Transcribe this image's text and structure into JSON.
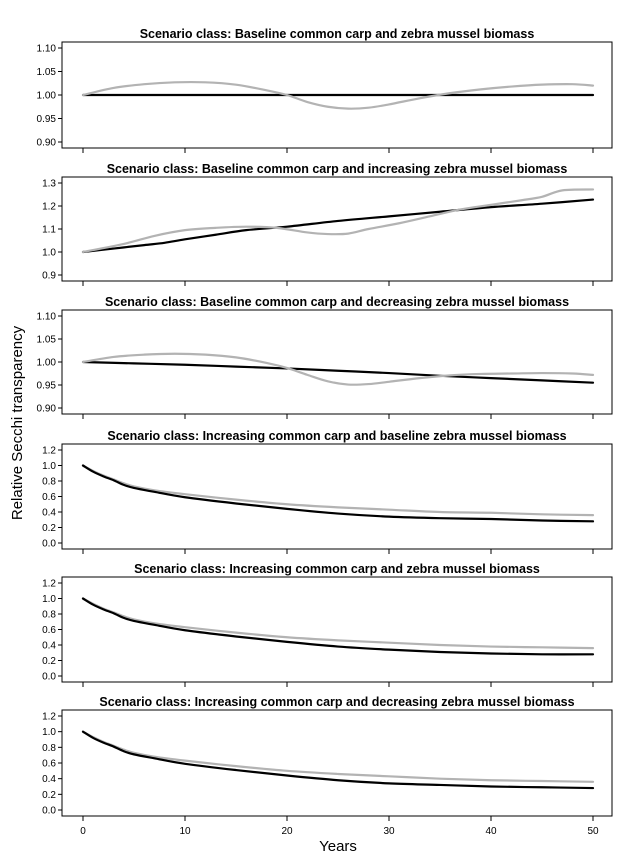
{
  "figure": {
    "ylabel": "Relative Secchi transparency",
    "xlabel": "Years"
  },
  "chart_data": [
    {
      "type": "line",
      "title": "Scenario class: Baseline common carp and zebra mussel biomass",
      "xlabel": "Years",
      "ylabel": "Relative Secchi transparency",
      "xlim": [
        0,
        50
      ],
      "ylim": [
        0.9,
        1.1
      ],
      "xticks": [
        0,
        10,
        20,
        30,
        40,
        50
      ],
      "yticks": [
        "0.90",
        "0.95",
        "1.00",
        "1.05",
        "1.10"
      ],
      "grid": false,
      "series": [
        {
          "color": "#000000",
          "x": [
            0,
            10,
            20,
            30,
            40,
            50
          ],
          "y": [
            1.0,
            1.0,
            1.0,
            1.0,
            1.0,
            1.0
          ]
        },
        {
          "color": "#b3b3b3",
          "x": [
            0,
            3,
            6,
            9,
            12,
            15,
            18,
            20,
            22,
            24,
            26,
            28,
            30,
            33,
            36,
            39,
            42,
            45,
            48,
            50
          ],
          "y": [
            1.0,
            1.015,
            1.023,
            1.027,
            1.027,
            1.022,
            1.01,
            1.0,
            0.985,
            0.975,
            0.971,
            0.973,
            0.98,
            0.993,
            1.004,
            1.012,
            1.018,
            1.022,
            1.023,
            1.02
          ]
        }
      ]
    },
    {
      "type": "line",
      "title": "Scenario class: Baseline common carp and increasing zebra mussel biomass",
      "xlabel": "Years",
      "ylabel": "Relative Secchi transparency",
      "xlim": [
        0,
        50
      ],
      "ylim": [
        0.9,
        1.3
      ],
      "xticks": [
        0,
        10,
        20,
        30,
        40,
        50
      ],
      "yticks": [
        "0.9",
        "1.0",
        "1.1",
        "1.2",
        "1.3"
      ],
      "grid": false,
      "series": [
        {
          "color": "#000000",
          "x": [
            0,
            3,
            6,
            8,
            10,
            13,
            16,
            20,
            25,
            30,
            35,
            40,
            45,
            50
          ],
          "y": [
            1.0,
            1.015,
            1.03,
            1.04,
            1.055,
            1.075,
            1.095,
            1.11,
            1.135,
            1.155,
            1.175,
            1.195,
            1.21,
            1.228
          ]
        },
        {
          "color": "#b3b3b3",
          "x": [
            0,
            4,
            7,
            10,
            13,
            16,
            19,
            22,
            24,
            26,
            28,
            31,
            34,
            37,
            40,
            43,
            45,
            47,
            50
          ],
          "y": [
            1.0,
            1.035,
            1.07,
            1.095,
            1.105,
            1.11,
            1.105,
            1.085,
            1.078,
            1.08,
            1.1,
            1.125,
            1.155,
            1.185,
            1.205,
            1.225,
            1.24,
            1.268,
            1.272
          ]
        }
      ]
    },
    {
      "type": "line",
      "title": "Scenario class: Baseline common carp and decreasing zebra mussel biomass",
      "xlabel": "Years",
      "ylabel": "Relative Secchi transparency",
      "xlim": [
        0,
        50
      ],
      "ylim": [
        0.9,
        1.1
      ],
      "xticks": [
        0,
        10,
        20,
        30,
        40,
        50
      ],
      "yticks": [
        "0.90",
        "0.95",
        "1.00",
        "1.05",
        "1.10"
      ],
      "grid": false,
      "series": [
        {
          "color": "#000000",
          "x": [
            0,
            5,
            10,
            15,
            20,
            25,
            30,
            35,
            40,
            45,
            50
          ],
          "y": [
            1.0,
            0.997,
            0.994,
            0.99,
            0.986,
            0.981,
            0.976,
            0.97,
            0.965,
            0.96,
            0.955
          ]
        },
        {
          "color": "#b3b3b3",
          "x": [
            0,
            3,
            6,
            9,
            12,
            15,
            18,
            20,
            22,
            24,
            26,
            28,
            30,
            33,
            36,
            39,
            42,
            45,
            48,
            50
          ],
          "y": [
            1.0,
            1.011,
            1.016,
            1.018,
            1.016,
            1.01,
            0.998,
            0.987,
            0.972,
            0.958,
            0.951,
            0.952,
            0.957,
            0.965,
            0.971,
            0.974,
            0.975,
            0.976,
            0.975,
            0.972
          ]
        }
      ]
    },
    {
      "type": "line",
      "title": "Scenario class: Increasing common carp and baseline zebra mussel biomass",
      "xlabel": "Years",
      "ylabel": "Relative Secchi transparency",
      "xlim": [
        0,
        50
      ],
      "ylim": [
        0.0,
        1.2
      ],
      "xticks": [
        0,
        10,
        20,
        30,
        40,
        50
      ],
      "yticks": [
        "0.0",
        "0.2",
        "0.4",
        "0.6",
        "0.8",
        "1.0",
        "1.2"
      ],
      "grid": false,
      "series": [
        {
          "color": "#b3b3b3",
          "x": [
            0,
            1,
            2,
            3,
            4,
            5,
            7,
            10,
            15,
            20,
            25,
            30,
            35,
            40,
            45,
            50
          ],
          "y": [
            1.0,
            0.93,
            0.87,
            0.82,
            0.77,
            0.73,
            0.68,
            0.63,
            0.56,
            0.5,
            0.46,
            0.43,
            0.4,
            0.39,
            0.37,
            0.36
          ]
        },
        {
          "color": "#000000",
          "x": [
            0,
            1,
            2,
            3,
            4,
            5,
            7,
            10,
            15,
            20,
            25,
            30,
            35,
            40,
            45,
            50
          ],
          "y": [
            1.0,
            0.92,
            0.86,
            0.81,
            0.75,
            0.71,
            0.66,
            0.59,
            0.51,
            0.44,
            0.38,
            0.34,
            0.32,
            0.31,
            0.29,
            0.28
          ]
        }
      ]
    },
    {
      "type": "line",
      "title": "Scenario class: Increasing common carp and zebra mussel biomass",
      "xlabel": "Years",
      "ylabel": "Relative Secchi transparency",
      "xlim": [
        0,
        50
      ],
      "ylim": [
        0.0,
        1.2
      ],
      "xticks": [
        0,
        10,
        20,
        30,
        40,
        50
      ],
      "yticks": [
        "0.0",
        "0.2",
        "0.4",
        "0.6",
        "0.8",
        "1.0",
        "1.2"
      ],
      "grid": false,
      "series": [
        {
          "color": "#b3b3b3",
          "x": [
            0,
            1,
            2,
            3,
            4,
            5,
            7,
            10,
            15,
            20,
            25,
            30,
            35,
            40,
            45,
            50
          ],
          "y": [
            1.0,
            0.93,
            0.87,
            0.82,
            0.77,
            0.73,
            0.68,
            0.63,
            0.56,
            0.5,
            0.46,
            0.43,
            0.4,
            0.38,
            0.37,
            0.36
          ]
        },
        {
          "color": "#000000",
          "x": [
            0,
            1,
            2,
            3,
            4,
            5,
            7,
            10,
            15,
            20,
            25,
            30,
            35,
            40,
            45,
            50
          ],
          "y": [
            1.0,
            0.92,
            0.86,
            0.81,
            0.75,
            0.71,
            0.66,
            0.59,
            0.51,
            0.44,
            0.38,
            0.34,
            0.31,
            0.29,
            0.28,
            0.28
          ]
        }
      ]
    },
    {
      "type": "line",
      "title": "Scenario class: Increasing common carp and decreasing zebra mussel biomass",
      "xlabel": "Years",
      "ylabel": "Relative Secchi transparency",
      "xlim": [
        0,
        50
      ],
      "ylim": [
        0.0,
        1.2
      ],
      "xticks": [
        0,
        10,
        20,
        30,
        40,
        50
      ],
      "yticks": [
        "0.0",
        "0.2",
        "0.4",
        "0.6",
        "0.8",
        "1.0",
        "1.2"
      ],
      "grid": false,
      "series": [
        {
          "color": "#b3b3b3",
          "x": [
            0,
            1,
            2,
            3,
            4,
            5,
            7,
            10,
            15,
            20,
            25,
            30,
            35,
            40,
            45,
            50
          ],
          "y": [
            1.0,
            0.93,
            0.87,
            0.82,
            0.77,
            0.73,
            0.68,
            0.63,
            0.56,
            0.5,
            0.46,
            0.43,
            0.4,
            0.38,
            0.37,
            0.36
          ]
        },
        {
          "color": "#000000",
          "x": [
            0,
            1,
            2,
            3,
            4,
            5,
            7,
            10,
            15,
            20,
            25,
            30,
            35,
            40,
            45,
            50
          ],
          "y": [
            1.0,
            0.92,
            0.86,
            0.81,
            0.75,
            0.71,
            0.66,
            0.59,
            0.51,
            0.44,
            0.38,
            0.34,
            0.32,
            0.3,
            0.29,
            0.28
          ]
        }
      ]
    }
  ]
}
